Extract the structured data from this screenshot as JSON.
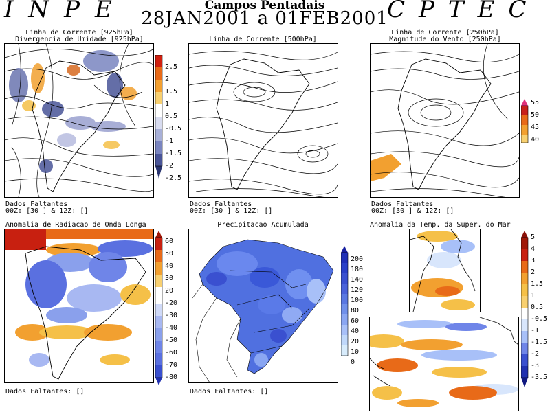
{
  "header": {
    "left": "INPE",
    "right": "CPTEC",
    "title": "Campos Pentadais",
    "date": "28JAN2001 a 01FEB2001"
  },
  "panels": {
    "p1": {
      "title1": "Linha de Corrente [925hPa]",
      "title2": "Divergencia de Umidade [925hPa]",
      "missing1": "Dados Faltantes",
      "missing2": "00Z: [30 ] & 12Z: []",
      "scale": [
        "2.5",
        "2",
        "1.5",
        "1",
        "0.5",
        "-0.5",
        "-1",
        "-1.5",
        "-2",
        "-2.5"
      ]
    },
    "p2": {
      "title1": "Linha de Corrente [500hPa]",
      "missing1": "Dados Faltantes",
      "missing2": "00Z: [30 ] & 12Z: []"
    },
    "p3": {
      "title1": "Linha de Corrente [250hPa]",
      "title2": "Magnitude do Vento [250hPa]",
      "missing1": "Dados Faltantes",
      "missing2": "00Z: [30 ] & 12Z: []",
      "scale": [
        "55",
        "50",
        "45",
        "40"
      ]
    },
    "p4": {
      "title1": "Anomalia de Radiacao de Onda Longa",
      "missing": "Dados Faltantes: []",
      "scale": [
        "60",
        "50",
        "40",
        "30",
        "20",
        "-20",
        "-30",
        "-40",
        "-50",
        "-60",
        "-70",
        "-80"
      ]
    },
    "p5": {
      "title1": "Precipitacao Acumulada",
      "missing": "Dados Faltantes: []",
      "scale": [
        "200",
        "180",
        "140",
        "120",
        "100",
        "80",
        "60",
        "40",
        "20",
        "10",
        "0"
      ]
    },
    "p6": {
      "title1": "Anomalia da Temp. da Super. do Mar",
      "scale": [
        "5",
        "4",
        "3",
        "2",
        "1.5",
        "1",
        "0.5",
        "-0.5",
        "-1",
        "-1.5",
        "-2",
        "-3",
        "-3.5"
      ]
    }
  }
}
